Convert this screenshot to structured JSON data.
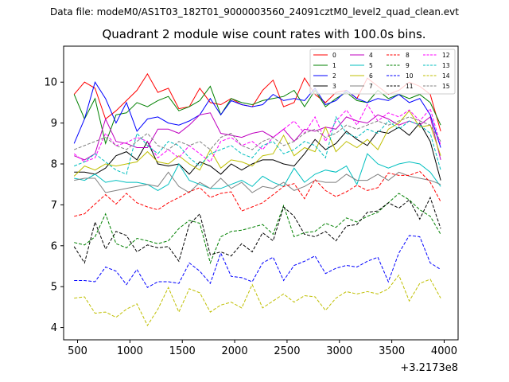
{
  "suptitle": "Data file: modeM0/AS1T03_182T01_9000003560_24091cztM0_level2_quad_clean.evt",
  "chart_data": {
    "type": "line",
    "title": "Quadrant 2 module wise count rates with 100.0s bins.",
    "xlabel": "",
    "ylabel": "",
    "x_offset_label": "+3.2173e8",
    "xlim": [
      367,
      4133
    ],
    "ylim": [
      3.7,
      10.88
    ],
    "x_ticks": [
      500,
      1000,
      1500,
      2000,
      2500,
      3000,
      3500,
      4000
    ],
    "x_tick_labels": [
      "500",
      "1000",
      "1500",
      "2000",
      "2500",
      "3000",
      "3500",
      "4000"
    ],
    "y_ticks": [
      4,
      5,
      6,
      7,
      8,
      9,
      10
    ],
    "y_tick_labels": [
      "4",
      "5",
      "6",
      "7",
      "8",
      "9",
      "10"
    ],
    "grid": false,
    "legend_position": "top-right",
    "x": [
      467,
      567,
      667,
      767,
      867,
      967,
      1067,
      1167,
      1267,
      1367,
      1467,
      1567,
      1667,
      1767,
      1867,
      1967,
      2067,
      2167,
      2267,
      2367,
      2467,
      2567,
      2667,
      2767,
      2867,
      2967,
      3067,
      3167,
      3267,
      3367,
      3467,
      3567,
      3667,
      3767,
      3867,
      3967
    ],
    "series": [
      {
        "name": "0",
        "color": "#ff0000",
        "dash": "solid",
        "values": [
          9.7,
          10.0,
          9.85,
          9.1,
          9.3,
          9.55,
          9.8,
          10.2,
          9.75,
          9.85,
          9.35,
          9.4,
          9.85,
          9.5,
          9.45,
          9.6,
          9.45,
          9.4,
          9.8,
          10.05,
          9.4,
          9.5,
          10.1,
          9.7,
          9.5,
          9.75,
          9.8,
          9.6,
          10.1,
          9.9,
          9.7,
          9.8,
          10.0,
          9.9,
          9.7,
          8.8
        ]
      },
      {
        "name": "1",
        "color": "#008000",
        "dash": "solid",
        "values": [
          9.7,
          9.1,
          9.6,
          8.5,
          9.2,
          9.25,
          9.5,
          9.4,
          9.55,
          9.65,
          9.3,
          9.4,
          9.55,
          9.9,
          9.2,
          9.6,
          9.5,
          9.45,
          9.55,
          9.6,
          9.65,
          9.8,
          9.4,
          9.8,
          9.4,
          9.6,
          9.75,
          9.55,
          9.5,
          9.8,
          9.6,
          9.7,
          9.6,
          9.7,
          9.5,
          8.95
        ]
      },
      {
        "name": "2",
        "color": "#0000ff",
        "dash": "solid",
        "values": [
          8.5,
          9.1,
          10.0,
          9.6,
          9.0,
          9.5,
          8.8,
          9.1,
          9.15,
          9.0,
          8.95,
          9.05,
          9.2,
          9.6,
          9.2,
          9.55,
          9.45,
          9.4,
          9.45,
          9.7,
          9.55,
          9.6,
          9.55,
          9.85,
          9.45,
          9.55,
          9.8,
          9.6,
          9.5,
          9.6,
          9.55,
          9.7,
          9.5,
          9.6,
          9.2,
          8.4
        ]
      },
      {
        "name": "3",
        "color": "#000000",
        "dash": "solid",
        "values": [
          7.8,
          7.8,
          7.75,
          7.9,
          8.2,
          8.3,
          8.1,
          8.55,
          8.0,
          7.95,
          8.0,
          7.75,
          8.05,
          7.95,
          7.75,
          8.0,
          7.85,
          8.0,
          8.1,
          8.1,
          8.0,
          7.95,
          8.25,
          8.6,
          8.35,
          8.5,
          8.8,
          8.6,
          8.45,
          8.8,
          8.75,
          8.9,
          8.7,
          9.0,
          8.55,
          7.6
        ]
      },
      {
        "name": "4",
        "color": "#bf00bf",
        "dash": "solid",
        "values": [
          8.2,
          8.1,
          8.25,
          9.1,
          8.55,
          8.5,
          8.4,
          8.4,
          8.85,
          8.85,
          8.75,
          8.95,
          9.2,
          9.25,
          8.75,
          8.7,
          8.65,
          8.75,
          8.8,
          8.65,
          8.85,
          8.55,
          8.85,
          8.8,
          8.9,
          8.85,
          9.15,
          9.05,
          9.0,
          9.2,
          9.1,
          8.95,
          9.05,
          8.95,
          9.15,
          8.1
        ]
      },
      {
        "name": "5",
        "color": "#00bfbf",
        "dash": "solid",
        "values": [
          7.65,
          7.6,
          7.75,
          7.55,
          7.6,
          7.55,
          7.55,
          7.5,
          7.35,
          7.5,
          8.0,
          7.6,
          7.5,
          7.4,
          7.4,
          7.5,
          7.6,
          7.45,
          7.7,
          7.55,
          7.45,
          7.9,
          7.55,
          7.75,
          7.85,
          7.8,
          7.95,
          7.5,
          8.25,
          8.0,
          7.9,
          8.0,
          8.05,
          8.0,
          7.8,
          7.45
        ]
      },
      {
        "name": "6",
        "color": "#bfbf00",
        "dash": "solid",
        "values": [
          7.7,
          7.95,
          7.85,
          8.0,
          7.95,
          8.0,
          8.05,
          8.3,
          8.05,
          8.0,
          8.2,
          8.0,
          7.85,
          8.35,
          7.9,
          8.1,
          8.05,
          7.95,
          8.2,
          8.25,
          8.7,
          8.2,
          8.4,
          8.3,
          8.9,
          8.3,
          8.55,
          8.4,
          8.6,
          8.35,
          8.85,
          9.0,
          9.3,
          8.9,
          8.95,
          8.2
        ]
      },
      {
        "name": "7",
        "color": "#808080",
        "dash": "solid",
        "values": [
          7.6,
          7.65,
          7.65,
          7.3,
          7.35,
          7.4,
          7.45,
          7.5,
          7.45,
          7.8,
          7.45,
          7.3,
          7.55,
          7.4,
          7.65,
          7.4,
          7.55,
          7.3,
          7.45,
          7.4,
          7.55,
          7.35,
          7.45,
          7.6,
          7.55,
          7.55,
          7.75,
          7.6,
          7.6,
          7.75,
          7.6,
          7.8,
          7.7,
          7.65,
          7.6,
          7.5
        ]
      },
      {
        "name": "8",
        "color": "#ff0000",
        "dash": "dashed",
        "values": [
          6.72,
          6.78,
          7.02,
          7.25,
          7.02,
          7.28,
          7.05,
          6.95,
          6.88,
          7.05,
          7.18,
          7.32,
          7.42,
          7.18,
          7.28,
          7.32,
          6.85,
          6.95,
          7.05,
          7.25,
          7.45,
          7.52,
          7.15,
          7.62,
          7.35,
          7.2,
          7.32,
          7.48,
          7.35,
          7.42,
          7.78,
          7.72,
          7.72,
          7.82,
          7.55,
          7.08
        ]
      },
      {
        "name": "9",
        "color": "#008000",
        "dash": "dashed",
        "values": [
          6.08,
          6.02,
          6.22,
          6.78,
          6.05,
          5.95,
          6.18,
          6.12,
          6.05,
          6.12,
          6.42,
          6.62,
          6.55,
          5.58,
          6.22,
          6.35,
          6.38,
          6.45,
          6.52,
          6.28,
          6.98,
          6.22,
          6.32,
          6.35,
          6.55,
          6.45,
          6.68,
          6.58,
          6.72,
          6.82,
          7.05,
          7.28,
          7.12,
          6.88,
          6.72,
          6.28
        ]
      },
      {
        "name": "10",
        "color": "#0000ff",
        "dash": "dashed",
        "values": [
          5.15,
          5.15,
          5.12,
          5.48,
          5.38,
          5.05,
          5.42,
          4.98,
          5.12,
          5.12,
          5.08,
          5.58,
          5.38,
          5.08,
          5.82,
          5.25,
          5.22,
          5.12,
          5.58,
          5.72,
          5.15,
          5.52,
          5.62,
          5.75,
          5.32,
          5.45,
          5.52,
          5.48,
          5.62,
          5.72,
          5.12,
          5.82,
          6.25,
          6.22,
          5.58,
          5.42
        ]
      },
      {
        "name": "11",
        "color": "#000000",
        "dash": "dashed",
        "values": [
          5.98,
          5.58,
          6.58,
          5.92,
          6.35,
          6.25,
          5.85,
          6.02,
          5.95,
          5.98,
          5.62,
          6.52,
          6.78,
          5.78,
          5.85,
          5.75,
          6.05,
          5.85,
          6.32,
          6.12,
          6.95,
          6.72,
          6.28,
          6.22,
          6.35,
          6.12,
          6.48,
          6.52,
          6.82,
          6.85,
          7.05,
          6.92,
          7.12,
          6.65,
          7.18,
          6.42
        ]
      },
      {
        "name": "12",
        "color": "#ff00ff",
        "dash": "dashed",
        "values": [
          8.25,
          8.05,
          8.15,
          8.75,
          8.45,
          8.52,
          8.65,
          8.55,
          8.15,
          8.35,
          8.15,
          8.45,
          8.25,
          8.05,
          8.55,
          8.65,
          8.45,
          8.55,
          8.35,
          8.65,
          8.85,
          9.05,
          8.75,
          9.15,
          8.55,
          9.05,
          9.32,
          8.95,
          9.45,
          9.05,
          9.25,
          9.15,
          9.32,
          9.05,
          9.35,
          8.45
        ]
      },
      {
        "name": "13",
        "color": "#00bfbf",
        "dash": "dashed",
        "values": [
          7.95,
          8.05,
          8.25,
          8.05,
          7.85,
          7.75,
          8.75,
          8.45,
          8.25,
          8.55,
          8.45,
          8.15,
          7.95,
          8.25,
          8.35,
          8.45,
          8.25,
          8.15,
          8.45,
          8.55,
          8.25,
          8.35,
          8.55,
          8.45,
          8.15,
          9.15,
          8.75,
          8.65,
          8.85,
          8.75,
          9.05,
          8.85,
          9.05,
          8.95,
          8.75,
          7.85
        ]
      },
      {
        "name": "14",
        "color": "#bfbf00",
        "dash": "dashed",
        "values": [
          4.72,
          4.75,
          4.35,
          4.38,
          4.25,
          4.45,
          4.58,
          4.05,
          4.45,
          4.98,
          4.38,
          4.95,
          4.85,
          4.38,
          4.55,
          4.62,
          4.48,
          5.05,
          4.48,
          4.65,
          4.82,
          4.62,
          4.78,
          4.75,
          4.42,
          4.72,
          4.88,
          4.82,
          4.88,
          4.82,
          4.95,
          5.28,
          4.65,
          5.08,
          5.18,
          4.72
        ]
      },
      {
        "name": "15",
        "color": "#808080",
        "dash": "dashed",
        "values": [
          8.35,
          8.45,
          8.55,
          8.65,
          8.45,
          8.35,
          8.55,
          8.75,
          8.45,
          8.35,
          8.55,
          8.45,
          8.55,
          8.35,
          8.65,
          8.75,
          8.45,
          8.35,
          8.55,
          8.65,
          8.45,
          8.55,
          8.75,
          8.85,
          8.65,
          8.75,
          8.95,
          8.85,
          8.95,
          9.05,
          8.95,
          9.05,
          9.15,
          9.05,
          8.95,
          8.55
        ]
      }
    ]
  }
}
